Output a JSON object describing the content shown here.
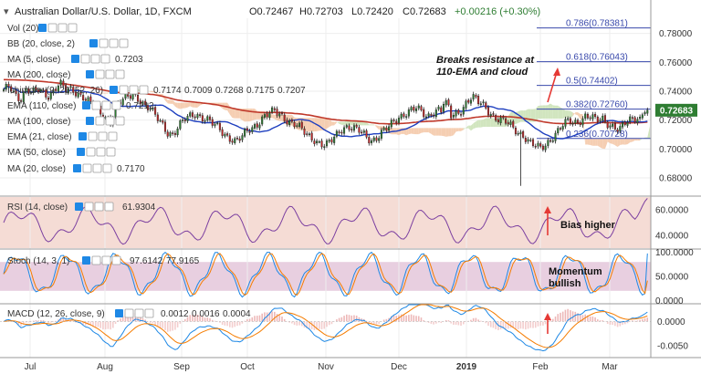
{
  "chart_data": {
    "type": "candlestick",
    "header": {
      "symbol": "Australian Dollar/U.S. Dollar, 1D, FXCM",
      "open": "O0.72467",
      "high": "H0.72703",
      "low": "L0.72420",
      "close": "C0.72683",
      "change": "+0.00216 (+0.30%)"
    },
    "last_price": "0.72683",
    "price_axis": {
      "range": [
        0.668,
        0.7905
      ],
      "ticks": [
        "0.78000",
        "0.76000",
        "0.74000",
        "0.72000",
        "0.70000",
        "0.68000"
      ]
    },
    "x_ticks": [
      "Jul",
      "Aug",
      "Sep",
      "Oct",
      "Nov",
      "Dec",
      "2019",
      "Feb",
      "Mar"
    ],
    "main_legend": [
      {
        "label": "Vol (20)",
        "values": []
      },
      {
        "label": "BB (20, close, 2)",
        "values": []
      },
      {
        "label": "MA (5, close)",
        "values": [
          {
            "v": "0.7203",
            "color": "#1a1a1a"
          }
        ]
      },
      {
        "label": "MA (200, close)",
        "values": []
      },
      {
        "label": "Ichimoku (9, 26, 52, 26)",
        "values": [
          {
            "v": "0.7174",
            "color": "#1e50c8"
          },
          {
            "v": "0.7009",
            "color": "#7a1e1e"
          },
          {
            "v": "0.7268",
            "color": "#2e7d32"
          },
          {
            "v": "0.7175",
            "color": "#2e7d32"
          },
          {
            "v": "0.7207",
            "color": "#c62828"
          }
        ]
      },
      {
        "label": "EMA (110, close)",
        "values": [
          {
            "v": "0.7212",
            "color": "#c62828"
          }
        ]
      },
      {
        "label": "MA (100, close)",
        "values": []
      },
      {
        "label": "EMA (21, close)",
        "values": []
      },
      {
        "label": "MA (50, close)",
        "values": []
      },
      {
        "label": "MA (20, close)",
        "values": [
          {
            "v": "0.7170",
            "color": "#1e50c8"
          }
        ]
      }
    ],
    "fibonacci": [
      {
        "ratio": "0.786",
        "label": "0.786(0.78381)",
        "value": 0.78381
      },
      {
        "ratio": "0.618",
        "label": "0.618(0.76043)",
        "value": 0.76043
      },
      {
        "ratio": "0.5",
        "label": "0.5(0.74402)",
        "value": 0.74402
      },
      {
        "ratio": "0.382",
        "label": "0.382(0.72760)",
        "value": 0.7276
      },
      {
        "ratio": "0.236",
        "label": "0.236(0.70728)",
        "value": 0.70728
      }
    ],
    "annotations": {
      "main": [
        "Breaks resistance at",
        "110-EMA and cloud"
      ],
      "rsi": "Bias higher",
      "stoch": [
        "Momentum",
        "bullish"
      ]
    },
    "candles": {
      "description": "Daily OHLC approx, mid Jun 2018 to end Jan 2019",
      "close_path": [
        0.74,
        0.743,
        0.738,
        0.735,
        0.742,
        0.738,
        0.741,
        0.739,
        0.737,
        0.742,
        0.745,
        0.74,
        0.741,
        0.739,
        0.737,
        0.733,
        0.729,
        0.725,
        0.722,
        0.72,
        0.73,
        0.733,
        0.736,
        0.738,
        0.735,
        0.73,
        0.727,
        0.722,
        0.718,
        0.712,
        0.71,
        0.715,
        0.72,
        0.723,
        0.725,
        0.722,
        0.72,
        0.717,
        0.715,
        0.711,
        0.708,
        0.705,
        0.707,
        0.712,
        0.715,
        0.718,
        0.722,
        0.724,
        0.726,
        0.724,
        0.721,
        0.718,
        0.716,
        0.712,
        0.709,
        0.707,
        0.704,
        0.702,
        0.705,
        0.71,
        0.715,
        0.716,
        0.714,
        0.712,
        0.709,
        0.706,
        0.708,
        0.712,
        0.714,
        0.718,
        0.722,
        0.725,
        0.727,
        0.728,
        0.725,
        0.722,
        0.726,
        0.728,
        0.725,
        0.722,
        0.724,
        0.727,
        0.733,
        0.736,
        0.732,
        0.73,
        0.726,
        0.722,
        0.72,
        0.718,
        0.715,
        0.712,
        0.71,
        0.705,
        0.702,
        0.7,
        0.703,
        0.708,
        0.712,
        0.716,
        0.719,
        0.718,
        0.72,
        0.723,
        0.722,
        0.719,
        0.721,
        0.718,
        0.716,
        0.713,
        0.717,
        0.72,
        0.722,
        0.725,
        0.727
      ]
    },
    "rsi": {
      "label": "RSI (14, close)",
      "value": "61.9304",
      "color": "#7b3fa0",
      "ticks": [
        "60.0000",
        "40.0000"
      ],
      "band": [
        30,
        70
      ],
      "range": [
        30,
        70
      ]
    },
    "stoch": {
      "label": "Stoch (14, 3, 1)",
      "values": [
        {
          "v": "97.6142",
          "color": "#1e88e5"
        },
        {
          "v": "77.9165",
          "color": "#f57c00"
        }
      ],
      "ticks": [
        "100.0000",
        "50.0000",
        "0.0000"
      ],
      "band": [
        20,
        80
      ],
      "range": [
        0,
        100
      ]
    },
    "macd": {
      "label": "MACD (12, 26, close, 9)",
      "values": [
        {
          "v": "0.0012",
          "color": "#c2185b"
        },
        {
          "v": "0.0016",
          "color": "#1e88e5"
        },
        {
          "v": "0.0004",
          "color": "#f57c00"
        }
      ],
      "ticks": [
        "0.0000",
        "-0.0050"
      ],
      "range": [
        -0.0075,
        0.0035
      ]
    },
    "colors": {
      "up": "#2e7d32",
      "down": "#c62828",
      "ema110": "#c0392b",
      "ma20": "#1e3fbf",
      "cloud_bear": "#f3c6a5",
      "cloud_bull": "#c9e1b4",
      "arrow": "#e53935",
      "rsi_band": "#f5dcd5",
      "stoch_band": "#e8cfe0"
    }
  }
}
